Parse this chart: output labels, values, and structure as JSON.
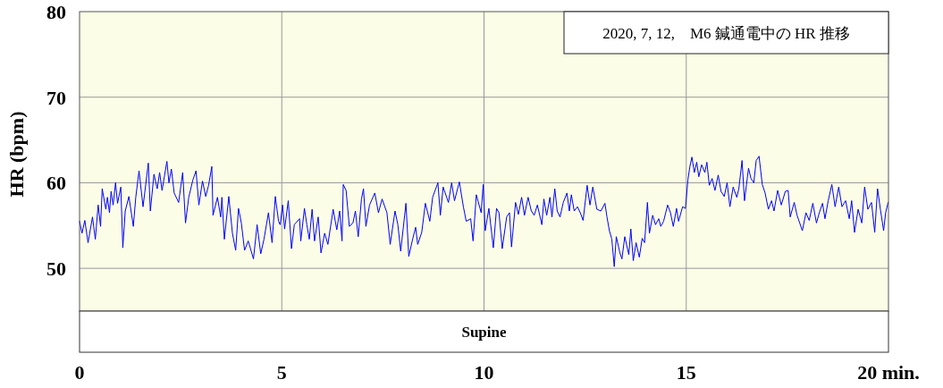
{
  "chart_data": {
    "type": "line",
    "title": "2020, 7, 12,　M6 鍼通電中の HR 推移",
    "ylabel": "HR (bpm)",
    "xlim": [
      0,
      20
    ],
    "ylim": [
      45,
      80
    ],
    "xticks": [
      0,
      5,
      10,
      15,
      {
        "value": 20,
        "label": "20 min."
      }
    ],
    "yticks": [
      50,
      60,
      70,
      80
    ],
    "grid": true,
    "color": "#0000ff",
    "annotations": [
      "Supine"
    ],
    "x": [
      0.0,
      0.06,
      0.13,
      0.21,
      0.32,
      0.39,
      0.46,
      0.52,
      0.56,
      0.65,
      0.69,
      0.74,
      0.78,
      0.83,
      0.89,
      0.94,
      1.02,
      1.07,
      1.13,
      1.22,
      1.33,
      1.39,
      1.47,
      1.57,
      1.7,
      1.75,
      1.84,
      1.92,
      1.98,
      2.04,
      2.16,
      2.21,
      2.27,
      2.34,
      2.45,
      2.55,
      2.62,
      2.7,
      2.8,
      2.88,
      2.95,
      3.04,
      3.12,
      3.19,
      3.27,
      3.3,
      3.41,
      3.49,
      3.52,
      3.58,
      3.69,
      3.78,
      3.86,
      3.93,
      4.0,
      4.08,
      4.17,
      4.3,
      4.39,
      4.48,
      4.56,
      4.67,
      4.76,
      4.84,
      4.92,
      4.96,
      5.02,
      5.07,
      5.16,
      5.24,
      5.31,
      5.44,
      5.47,
      5.56,
      5.62,
      5.68,
      5.75,
      5.81,
      5.9,
      5.97,
      6.06,
      6.14,
      6.27,
      6.36,
      6.43,
      6.49,
      6.52,
      6.59,
      6.67,
      6.76,
      6.82,
      6.89,
      6.97,
      7.02,
      7.08,
      7.17,
      7.3,
      7.39,
      7.48,
      7.6,
      7.68,
      7.8,
      7.87,
      7.94,
      8.07,
      8.14,
      8.24,
      8.31,
      8.36,
      8.46,
      8.55,
      8.66,
      8.73,
      8.86,
      8.92,
      8.99,
      9.12,
      9.2,
      9.27,
      9.39,
      9.49,
      9.56,
      9.67,
      9.73,
      9.81,
      9.93,
      9.98,
      10.03,
      10.12,
      10.23,
      10.31,
      10.37,
      10.45,
      10.56,
      10.63,
      10.68,
      10.78,
      10.85,
      10.93,
      11.0,
      11.09,
      11.17,
      11.24,
      11.32,
      11.43,
      11.48,
      11.55,
      11.63,
      11.68,
      11.75,
      11.81,
      11.88,
      11.96,
      12.05,
      12.11,
      12.16,
      12.23,
      12.31,
      12.38,
      12.45,
      12.55,
      12.62,
      12.69,
      12.79,
      12.89,
      12.99,
      13.04,
      13.1,
      13.16,
      13.22,
      13.27,
      13.36,
      13.41,
      13.48,
      13.58,
      13.63,
      13.69,
      13.76,
      13.84,
      13.91,
      13.97,
      14.04,
      14.09,
      14.17,
      14.24,
      14.32,
      14.37,
      14.44,
      14.54,
      14.61,
      14.68,
      14.76,
      14.81,
      14.91,
      14.98,
      15.04,
      15.09,
      15.14,
      15.2,
      15.26,
      15.31,
      15.38,
      15.46,
      15.51,
      15.57,
      15.64,
      15.71,
      15.79,
      15.86,
      15.94,
      16.01,
      16.08,
      16.16,
      16.25,
      16.3,
      16.38,
      16.44,
      16.49,
      16.54,
      16.6,
      16.67,
      16.73,
      16.8,
      16.88,
      16.95,
      17.03,
      17.11,
      17.17,
      17.26,
      17.35,
      17.45,
      17.52,
      17.57,
      17.67,
      17.74,
      17.87,
      17.96,
      18.04,
      18.13,
      18.22,
      18.29,
      18.37,
      18.43,
      18.51,
      18.6,
      18.68,
      18.77,
      18.85,
      18.94,
      19.03,
      19.09,
      19.16,
      19.25,
      19.34,
      19.41,
      19.49,
      19.58,
      19.66,
      19.73,
      19.8,
      19.88,
      19.93,
      19.99
    ],
    "values": [
      55.5,
      54.1,
      55.6,
      53.0,
      56.0,
      53.4,
      57.4,
      54.9,
      59.3,
      56.9,
      58.3,
      56.5,
      59.0,
      57.4,
      60.0,
      57.6,
      59.5,
      52.4,
      56.7,
      58.4,
      54.9,
      58.3,
      61.4,
      57.2,
      62.3,
      56.7,
      61.0,
      59.3,
      61.2,
      59.1,
      62.5,
      60.0,
      61.6,
      58.8,
      57.7,
      61.2,
      55.3,
      58.3,
      60.3,
      61.4,
      57.4,
      60.2,
      58.4,
      59.7,
      61.9,
      56.2,
      58.3,
      56.0,
      58.3,
      53.4,
      58.4,
      54.1,
      52.1,
      57.0,
      55.3,
      52.1,
      53.2,
      51.1,
      55.1,
      51.7,
      53.4,
      56.5,
      53.0,
      58.4,
      55.5,
      55.1,
      57.4,
      54.6,
      57.9,
      52.3,
      55.1,
      55.8,
      53.2,
      57.0,
      55.1,
      53.4,
      56.9,
      53.2,
      56.0,
      51.8,
      54.1,
      52.8,
      56.9,
      54.5,
      56.7,
      53.2,
      59.8,
      59.1,
      54.9,
      55.3,
      56.7,
      53.7,
      58.1,
      59.3,
      54.9,
      57.4,
      58.8,
      56.5,
      58.1,
      56.5,
      52.8,
      56.7,
      55.1,
      52.0,
      57.6,
      51.4,
      53.5,
      54.8,
      52.8,
      54.2,
      57.6,
      55.5,
      58.3,
      60.0,
      56.2,
      59.5,
      57.7,
      60.0,
      57.9,
      60.1,
      57.2,
      55.5,
      55.8,
      53.2,
      58.6,
      56.5,
      59.8,
      54.4,
      57.0,
      52.4,
      57.0,
      56.5,
      52.3,
      56.0,
      56.5,
      52.5,
      57.7,
      56.3,
      58.3,
      56.2,
      58.3,
      56.7,
      56.2,
      57.4,
      55.1,
      58.1,
      56.2,
      58.3,
      56.0,
      59.3,
      56.7,
      56.0,
      57.7,
      58.8,
      56.7,
      58.6,
      56.7,
      57.2,
      56.5,
      55.6,
      59.7,
      57.4,
      59.5,
      56.9,
      56.7,
      57.6,
      56.0,
      54.4,
      53.4,
      50.2,
      53.7,
      51.8,
      51.1,
      53.7,
      51.6,
      54.6,
      50.9,
      53.0,
      51.3,
      53.5,
      53.0,
      57.7,
      54.1,
      56.2,
      55.1,
      55.8,
      54.9,
      55.5,
      57.4,
      56.5,
      54.9,
      57.0,
      55.5,
      57.2,
      57.0,
      60.3,
      61.9,
      63.0,
      61.2,
      62.4,
      60.7,
      62.1,
      61.2,
      62.4,
      59.7,
      60.5,
      59.1,
      60.9,
      59.0,
      58.4,
      60.0,
      57.2,
      59.5,
      58.3,
      59.3,
      62.6,
      57.9,
      59.8,
      61.7,
      60.5,
      60.0,
      62.6,
      63.1,
      59.8,
      58.8,
      56.9,
      57.9,
      56.7,
      59.1,
      57.4,
      59.0,
      59.1,
      56.0,
      57.7,
      56.2,
      54.4,
      56.5,
      55.6,
      57.6,
      55.3,
      56.5,
      57.6,
      55.8,
      57.9,
      59.8,
      57.2,
      59.5,
      57.2,
      57.9,
      55.8,
      57.9,
      54.2,
      56.9,
      55.3,
      59.5,
      56.9,
      57.7,
      54.2,
      59.3,
      56.9,
      54.4,
      56.5,
      57.7
    ]
  }
}
